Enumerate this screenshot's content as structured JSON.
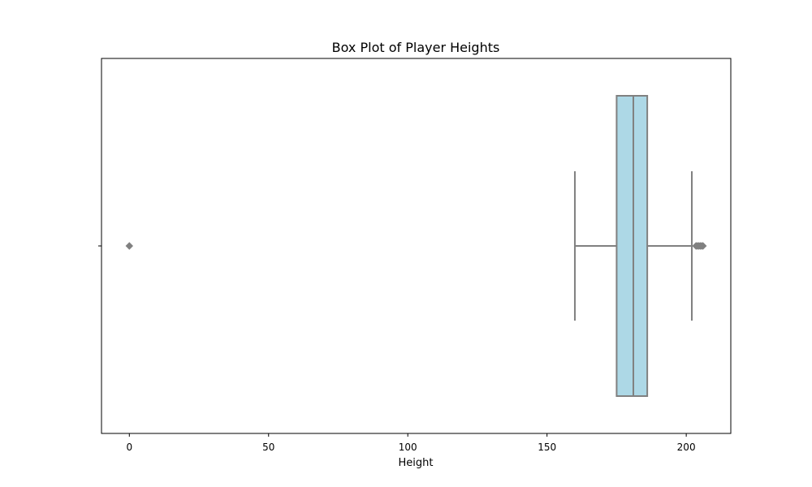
{
  "chart_data": {
    "type": "boxplot",
    "title": "Box Plot of Player Heights",
    "xlabel": "Height",
    "ylabel": "",
    "xlim": [
      -10,
      216
    ],
    "xticks": [
      0,
      50,
      100,
      150,
      200
    ],
    "xtick_labels": [
      "0",
      "50",
      "100",
      "150",
      "200"
    ],
    "orientation": "horizontal",
    "grid": false,
    "box": {
      "whisker_low": 160,
      "q1": 175,
      "median": 181,
      "q3": 186,
      "whisker_high": 202
    },
    "outliers": [
      0,
      203.5,
      204,
      204.5,
      205,
      205.5,
      206
    ],
    "colors": {
      "box_fill": "#add8e6",
      "line": "#808080",
      "outlier": "#808080",
      "axes": "#000000"
    }
  }
}
